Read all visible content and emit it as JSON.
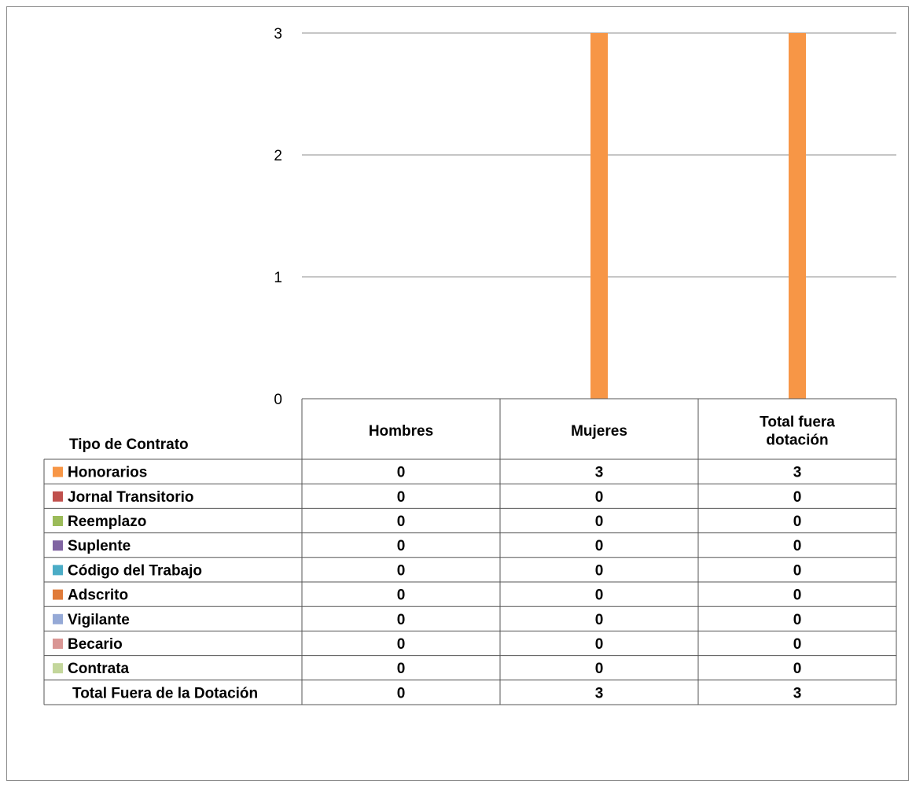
{
  "chart_data": {
    "type": "bar",
    "categories": [
      "Hombres",
      "Mujeres",
      "Total fuera dotación"
    ],
    "category_lines": [
      [
        "Hombres"
      ],
      [
        "Mujeres"
      ],
      [
        "Total fuera",
        "dotación"
      ]
    ],
    "ylim": [
      0,
      3
    ],
    "yticks": [
      "0",
      "1",
      "2",
      "3"
    ],
    "grid": true,
    "table_header": "Tipo de Contrato",
    "series": [
      {
        "name": "Honorarios",
        "color": "#F79646",
        "values": [
          0,
          3,
          3
        ]
      },
      {
        "name": "Jornal Transitorio",
        "color": "#C0504D",
        "values": [
          0,
          0,
          0
        ]
      },
      {
        "name": "Reemplazo",
        "color": "#9BBB59",
        "values": [
          0,
          0,
          0
        ]
      },
      {
        "name": "Suplente",
        "color": "#8064A2",
        "values": [
          0,
          0,
          0
        ]
      },
      {
        "name": "Código del Trabajo",
        "color": "#4BACC6",
        "values": [
          0,
          0,
          0
        ]
      },
      {
        "name": "Adscrito",
        "color": "#E07B39",
        "values": [
          0,
          0,
          0
        ]
      },
      {
        "name": "Vigilante",
        "color": "#95A9D6",
        "values": [
          0,
          0,
          0
        ]
      },
      {
        "name": "Becario",
        "color": "#D99694",
        "values": [
          0,
          0,
          0
        ]
      },
      {
        "name": "Contrata",
        "color": "#C3D69B",
        "values": [
          0,
          0,
          0
        ]
      }
    ],
    "total_row": {
      "label": "Total Fuera de la Dotación",
      "values": [
        0,
        3,
        3
      ]
    }
  }
}
